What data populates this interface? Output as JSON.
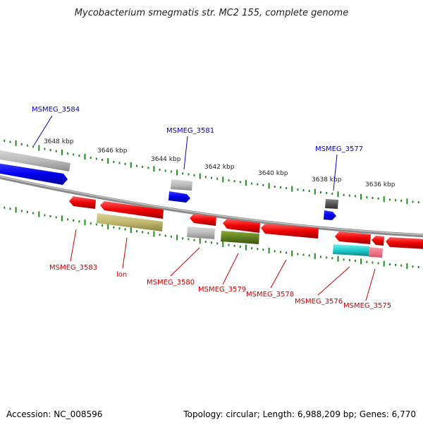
{
  "title": "Mycobacterium smegmatis str. MC2 155, complete genome",
  "footer": {
    "accession": "Accession: NC_008596",
    "summary": "Topology: circular; Length: 6,988,209 bp; Genes: 6,770"
  },
  "colors": {
    "forward_label": "#0000cc",
    "reverse_label": "#cc0000",
    "tick": "#228822",
    "backbone": "#888888"
  },
  "scale_labels": [
    "3648 kbp",
    "3646 kbp",
    "3644 kbp",
    "3642 kbp",
    "3640 kbp",
    "3638 kbp",
    "3636 kbp"
  ],
  "forward_genes": [
    {
      "label": "MSMEG_3584"
    },
    {
      "label": "MSMEG_3581"
    },
    {
      "label": "MSMEG_3577"
    }
  ],
  "reverse_genes": [
    {
      "label": "MSMEG_3583"
    },
    {
      "label": "lon"
    },
    {
      "label": "MSMEG_3580"
    },
    {
      "label": "MSMEG_3579"
    },
    {
      "label": "MSMEG_3578"
    },
    {
      "label": "MSMEG_3576"
    },
    {
      "label": "MSMEG_3575"
    }
  ]
}
